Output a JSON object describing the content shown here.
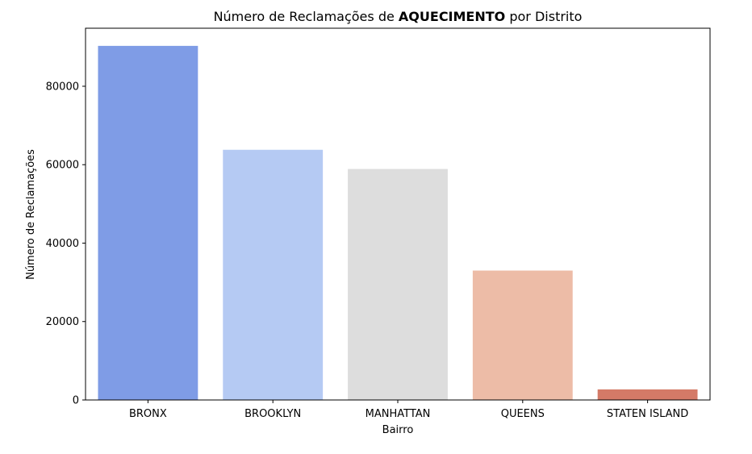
{
  "chart_data": {
    "type": "bar",
    "title_prefix": "Número de Reclamações de ",
    "title_bold": "AQUECIMENTO",
    "title_suffix": " por Distrito",
    "xlabel": "Bairro",
    "ylabel": "Número de Reclamações",
    "categories": [
      "BRONX",
      "BROOKLYN",
      "MANHATTAN",
      "QUEENS",
      "STATEN ISLAND"
    ],
    "values": [
      90300,
      63800,
      58900,
      33000,
      2700
    ],
    "colors": [
      "#7f9ce6",
      "#b5caf3",
      "#dddddd",
      "#edbca7",
      "#d47a67"
    ],
    "yticks": [
      0,
      20000,
      40000,
      60000,
      80000
    ],
    "ylim": [
      0,
      94800
    ],
    "grid": false,
    "legend": "none"
  }
}
